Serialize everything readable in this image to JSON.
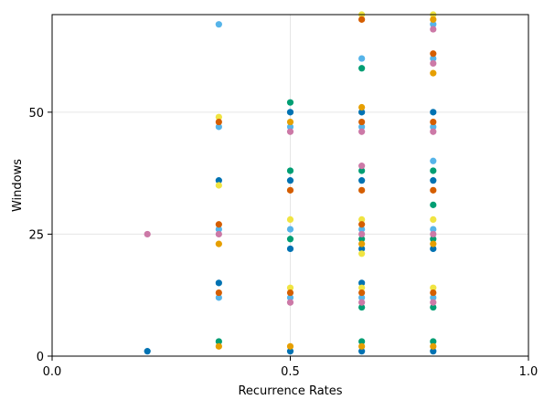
{
  "chart_data": {
    "type": "scatter",
    "title": "",
    "xlabel": "Recurrence Rates",
    "ylabel": "Windows",
    "xlim": [
      0.0,
      1.0
    ],
    "ylim": [
      0,
      70
    ],
    "x_ticks": [
      0.0,
      0.5,
      1.0
    ],
    "x_tick_labels": [
      "0.0",
      "0.5",
      "1.0"
    ],
    "y_ticks": [
      0,
      25,
      50
    ],
    "y_tick_labels": [
      "0",
      "25",
      "50"
    ],
    "grid": true,
    "series": [
      {
        "color": "#0072b2",
        "points": [
          [
            0.2,
            1
          ],
          [
            0.35,
            15
          ],
          [
            0.35,
            36
          ],
          [
            0.5,
            1
          ],
          [
            0.5,
            22
          ],
          [
            0.5,
            36
          ],
          [
            0.5,
            50
          ],
          [
            0.65,
            1
          ],
          [
            0.65,
            15
          ],
          [
            0.65,
            22
          ],
          [
            0.65,
            36
          ],
          [
            0.65,
            50
          ],
          [
            0.8,
            1
          ],
          [
            0.8,
            22
          ],
          [
            0.8,
            36
          ],
          [
            0.8,
            50
          ]
        ]
      },
      {
        "color": "#56b4e9",
        "points": [
          [
            0.35,
            12
          ],
          [
            0.35,
            26
          ],
          [
            0.35,
            47
          ],
          [
            0.35,
            68
          ],
          [
            0.5,
            12
          ],
          [
            0.5,
            26
          ],
          [
            0.5,
            47
          ],
          [
            0.65,
            12
          ],
          [
            0.65,
            26
          ],
          [
            0.65,
            47
          ],
          [
            0.65,
            61
          ],
          [
            0.8,
            12
          ],
          [
            0.8,
            26
          ],
          [
            0.8,
            40
          ],
          [
            0.8,
            47
          ],
          [
            0.8,
            61
          ],
          [
            0.8,
            68
          ]
        ]
      },
      {
        "color": "#009e73",
        "points": [
          [
            0.35,
            3
          ],
          [
            0.5,
            24
          ],
          [
            0.5,
            38
          ],
          [
            0.5,
            52
          ],
          [
            0.65,
            3
          ],
          [
            0.65,
            10
          ],
          [
            0.65,
            24
          ],
          [
            0.65,
            38
          ],
          [
            0.65,
            59
          ],
          [
            0.8,
            3
          ],
          [
            0.8,
            10
          ],
          [
            0.8,
            24
          ],
          [
            0.8,
            31
          ],
          [
            0.8,
            38
          ]
        ]
      },
      {
        "color": "#f0e442",
        "points": [
          [
            0.35,
            35
          ],
          [
            0.35,
            49
          ],
          [
            0.5,
            14
          ],
          [
            0.5,
            28
          ],
          [
            0.65,
            14
          ],
          [
            0.65,
            21
          ],
          [
            0.65,
            28
          ],
          [
            0.65,
            70
          ],
          [
            0.8,
            14
          ],
          [
            0.8,
            28
          ],
          [
            0.8,
            70
          ]
        ]
      },
      {
        "color": "#e69f00",
        "points": [
          [
            0.35,
            2
          ],
          [
            0.35,
            23
          ],
          [
            0.5,
            2
          ],
          [
            0.5,
            48
          ],
          [
            0.65,
            2
          ],
          [
            0.65,
            23
          ],
          [
            0.65,
            51
          ],
          [
            0.8,
            2
          ],
          [
            0.8,
            23
          ],
          [
            0.8,
            58
          ],
          [
            0.8,
            69
          ]
        ]
      },
      {
        "color": "#d55e00",
        "points": [
          [
            0.35,
            13
          ],
          [
            0.35,
            27
          ],
          [
            0.35,
            48
          ],
          [
            0.5,
            13
          ],
          [
            0.5,
            34
          ],
          [
            0.65,
            13
          ],
          [
            0.65,
            27
          ],
          [
            0.65,
            34
          ],
          [
            0.65,
            48
          ],
          [
            0.65,
            69
          ],
          [
            0.8,
            13
          ],
          [
            0.8,
            34
          ],
          [
            0.8,
            48
          ],
          [
            0.8,
            62
          ]
        ]
      },
      {
        "color": "#cc79a7",
        "points": [
          [
            0.2,
            25
          ],
          [
            0.35,
            25
          ],
          [
            0.5,
            11
          ],
          [
            0.5,
            46
          ],
          [
            0.65,
            11
          ],
          [
            0.65,
            25
          ],
          [
            0.65,
            39
          ],
          [
            0.65,
            46
          ],
          [
            0.8,
            11
          ],
          [
            0.8,
            25
          ],
          [
            0.8,
            46
          ],
          [
            0.8,
            60
          ],
          [
            0.8,
            67
          ]
        ]
      }
    ]
  }
}
